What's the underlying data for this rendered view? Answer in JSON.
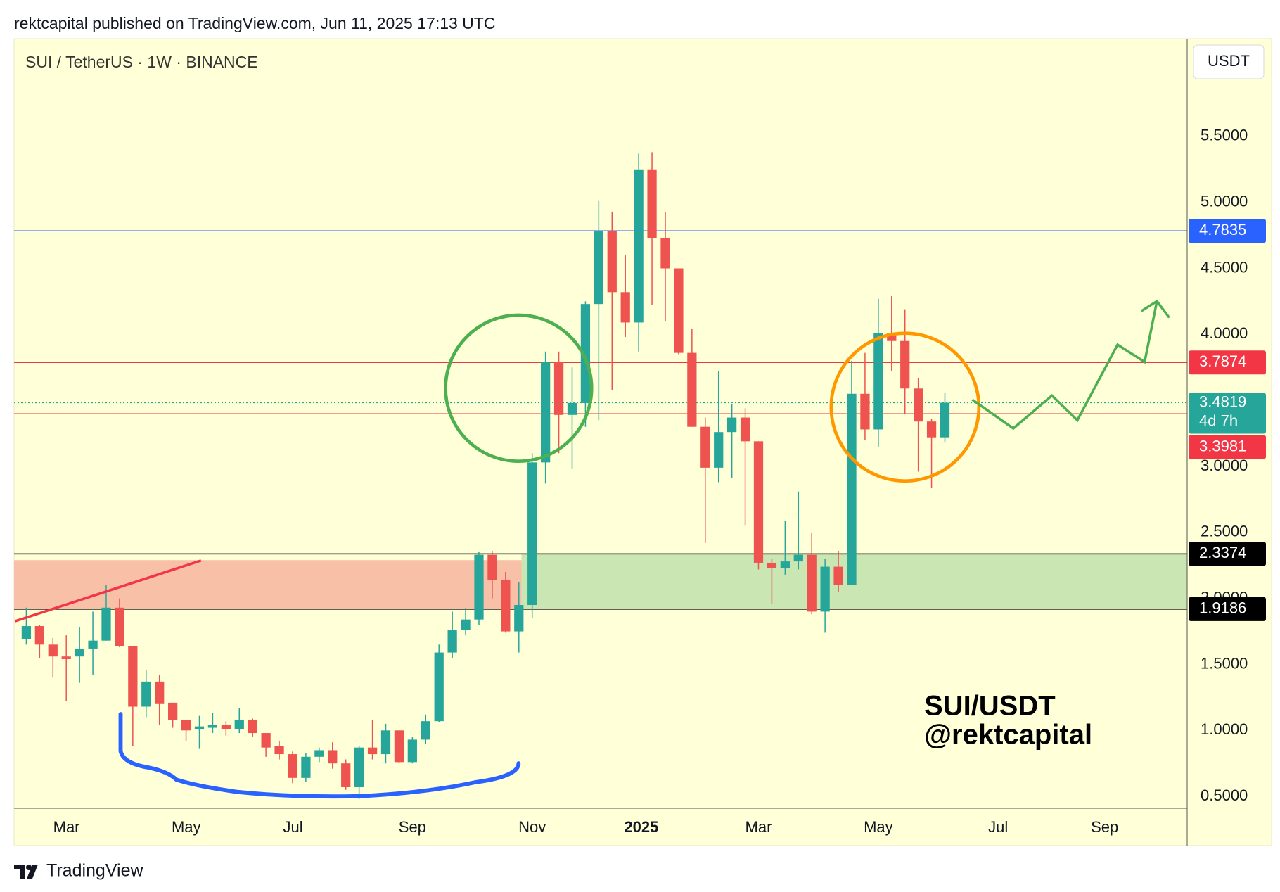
{
  "header": "rektcapital published on TradingView.com, Jun 11, 2025 17:13 UTC",
  "footer": "TradingView",
  "chart_data": {
    "type": "candlestick",
    "title": "SUI / TetherUS · 1W · BINANCE",
    "currency": "USDT",
    "annotation": [
      "SUI/USDT",
      "@rektcapital"
    ],
    "up_color": "#26a69a",
    "down_color": "#ef5350",
    "open": [
      1.69,
      1.79,
      1.65,
      1.56,
      1.56,
      1.62,
      1.68,
      1.93,
      1.64,
      1.18,
      1.37,
      1.21,
      1.08,
      1.01,
      1.02,
      1.04,
      1.01,
      1.08,
      0.98,
      0.88,
      0.82,
      0.64,
      0.8,
      0.85,
      0.75,
      0.57,
      0.87,
      0.82,
      1.0,
      0.76,
      0.93,
      1.07,
      1.59,
      1.76,
      1.84,
      2.33,
      2.14,
      1.75,
      1.95,
      3.03,
      3.79,
      3.39,
      3.48,
      4.23,
      4.78,
      4.32,
      4.09,
      5.25,
      4.73,
      4.5,
      3.86,
      3.3,
      2.99,
      3.26,
      3.37,
      3.19,
      2.27,
      2.23,
      2.28,
      2.33,
      1.9,
      2.24,
      2.1,
      3.55,
      3.28,
      4.01,
      3.95,
      3.59,
      3.34,
      3.22
    ],
    "high": [
      1.93,
      1.8,
      1.7,
      1.72,
      1.78,
      1.9,
      2.1,
      2.0,
      1.64,
      1.46,
      1.42,
      1.21,
      1.08,
      1.11,
      1.13,
      1.07,
      1.17,
      1.09,
      0.98,
      0.92,
      0.84,
      0.83,
      0.87,
      0.91,
      0.78,
      0.88,
      1.08,
      1.05,
      1.0,
      0.95,
      1.12,
      1.65,
      1.9,
      1.93,
      2.35,
      2.36,
      2.2,
      2.12,
      3.1,
      3.87,
      3.87,
      3.75,
      4.25,
      5.01,
      4.93,
      4.6,
      5.37,
      5.38,
      4.93,
      4.5,
      4.04,
      3.37,
      3.72,
      3.47,
      3.44,
      3.19,
      2.3,
      2.59,
      2.81,
      2.5,
      2.3,
      2.36,
      3.8,
      3.86,
      4.27,
      4.29,
      4.19,
      3.67,
      3.36,
      3.56
    ],
    "low": [
      1.65,
      1.55,
      1.4,
      1.22,
      1.36,
      1.42,
      1.68,
      1.63,
      0.88,
      1.1,
      1.04,
      1.02,
      0.92,
      0.86,
      0.98,
      0.96,
      0.98,
      0.95,
      0.8,
      0.78,
      0.6,
      0.61,
      0.76,
      0.71,
      0.55,
      0.48,
      0.78,
      0.75,
      0.75,
      0.75,
      0.9,
      1.06,
      1.55,
      1.72,
      1.8,
      2.0,
      1.74,
      1.59,
      1.85,
      2.87,
      3.1,
      2.98,
      3.3,
      3.35,
      3.58,
      3.98,
      3.87,
      4.22,
      4.1,
      3.85,
      3.3,
      2.42,
      2.88,
      2.91,
      2.55,
      2.22,
      1.96,
      2.18,
      2.22,
      1.88,
      1.74,
      2.05,
      2.12,
      3.2,
      3.15,
      3.72,
      3.4,
      2.96,
      2.84,
      3.18
    ],
    "close": [
      1.79,
      1.65,
      1.56,
      1.54,
      1.62,
      1.68,
      1.93,
      1.64,
      1.18,
      1.37,
      1.2,
      1.08,
      1.0,
      1.03,
      1.04,
      1.01,
      1.08,
      0.98,
      0.87,
      0.82,
      0.64,
      0.8,
      0.85,
      0.75,
      0.57,
      0.87,
      0.82,
      1.0,
      0.76,
      0.93,
      1.07,
      1.59,
      1.76,
      1.84,
      2.33,
      2.14,
      1.75,
      1.95,
      3.03,
      3.79,
      3.39,
      3.48,
      4.23,
      4.78,
      4.32,
      4.09,
      5.25,
      4.73,
      4.5,
      3.86,
      3.3,
      2.99,
      3.26,
      3.37,
      3.19,
      2.27,
      2.23,
      2.28,
      2.33,
      1.9,
      2.24,
      2.1,
      3.55,
      3.28,
      4.01,
      3.95,
      3.59,
      3.34,
      3.22,
      3.4819
    ],
    "xlim": [
      -0.92,
      87.2
    ],
    "xticks": [
      {
        "value": 3.02,
        "label": "Mar"
      },
      {
        "value": 12.01,
        "label": "May"
      },
      {
        "value": 20.03,
        "label": "Jul"
      },
      {
        "value": 29.0,
        "label": "Sep"
      },
      {
        "value": 38.0,
        "label": "Nov"
      },
      {
        "value": 46.2,
        "label": "2025"
      },
      {
        "value": 55.0,
        "label": "Mar"
      },
      {
        "value": 64.0,
        "label": "May"
      },
      {
        "value": 73.0,
        "label": "Jul"
      },
      {
        "value": 81.0,
        "label": "Sep"
      }
    ],
    "ylim": [
      0.41,
      6.24
    ],
    "yticks": [
      {
        "value": 0.5,
        "label": "0.5000"
      },
      {
        "value": 1.0,
        "label": "1.0000"
      },
      {
        "value": 1.5,
        "label": "1.5000"
      },
      {
        "value": 2.0,
        "label": "2.0000"
      },
      {
        "value": 2.5,
        "label": "2.5000"
      },
      {
        "value": 3.0,
        "label": "3.0000"
      },
      {
        "value": 4.0,
        "label": "4.0000"
      },
      {
        "value": 4.5,
        "label": "4.5000"
      },
      {
        "value": 5.0,
        "label": "5.0000"
      },
      {
        "value": 5.5,
        "label": "5.5000"
      }
    ],
    "levels": [
      {
        "value": 4.7835,
        "color": "#2962ff"
      },
      {
        "value": 3.7874,
        "color": "#f23645"
      },
      {
        "value": 3.3981,
        "color": "#f23645"
      },
      {
        "value": 2.3374,
        "color": "#000000"
      },
      {
        "value": 1.9186,
        "color": "#000000"
      }
    ],
    "last_price": 3.4819,
    "countdown": "4d 7h",
    "zones": [
      {
        "low": 1.9186,
        "high": 2.29,
        "x": [
          -0.92,
          37.2
        ],
        "color": "#f9c0a8"
      },
      {
        "low": 1.9186,
        "high": 2.3374,
        "x": [
          37.2,
          87.2
        ],
        "color": "#c9e6b3"
      }
    ]
  }
}
